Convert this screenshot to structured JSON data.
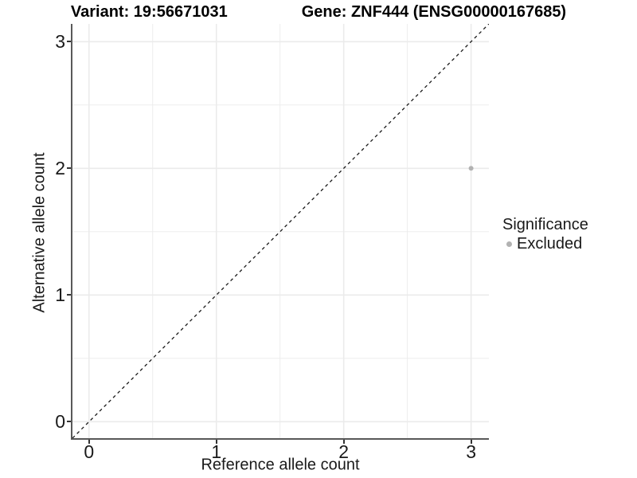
{
  "header": {
    "variant_title": "Variant: 19:56671031",
    "gene_title": "Gene: ZNF444 (ENSG00000167685)"
  },
  "legend": {
    "title": "Significance",
    "items": [
      {
        "label": "Excluded",
        "color": "#b2b2b2"
      }
    ]
  },
  "chart_data": {
    "type": "scatter",
    "title_left": "Variant: 19:56671031",
    "title_right": "Gene: ZNF444 (ENSG00000167685)",
    "xlabel": "Reference allele count",
    "ylabel": "Alternative allele count",
    "xlim": [
      -0.13,
      3.14
    ],
    "ylim": [
      -0.13,
      3.14
    ],
    "x_ticks": [
      0,
      1,
      2,
      3
    ],
    "y_ticks": [
      0,
      1,
      2,
      3
    ],
    "minor_gridlines": [
      0.5,
      1.5,
      2.5
    ],
    "grid": true,
    "grid_color": "#ebebeb",
    "axis_line_color": "#595959",
    "tick_color": "#333333",
    "identity_line": {
      "from": [
        -0.13,
        -0.13
      ],
      "to": [
        3.14,
        3.14
      ],
      "style": "dashed",
      "color": "#1a1a1a"
    },
    "series": [
      {
        "name": "Excluded",
        "color": "#b2b2b2",
        "points": [
          {
            "x": 3,
            "y": 2
          }
        ]
      }
    ],
    "legend_title": "Significance",
    "legend_position": "right"
  }
}
